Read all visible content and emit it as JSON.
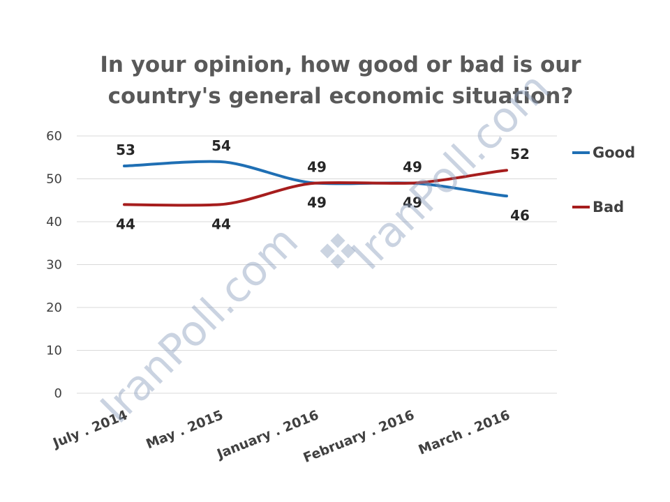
{
  "chart_data": {
    "type": "line",
    "title": "In your opinion, how good or bad is our country's general economic situation?",
    "title_lines": [
      "In your opinion, how good or bad is our",
      "country's general economic situation?"
    ],
    "categories": [
      "July . 2014",
      "May . 2015",
      "January . 2016",
      "February . 2016",
      "March . 2016"
    ],
    "series": [
      {
        "name": "Good",
        "values": [
          53,
          54,
          49,
          49,
          46
        ],
        "color": "#1f6fb4"
      },
      {
        "name": "Bad",
        "values": [
          44,
          44,
          49,
          49,
          52
        ],
        "color": "#a61d1d"
      }
    ],
    "ylim": [
      0,
      60
    ],
    "yticks": [
      0,
      10,
      20,
      30,
      40,
      50,
      60
    ],
    "grid": true,
    "legend": "right",
    "line_style": "smooth"
  },
  "watermark": {
    "text": "IranPoll.com",
    "icon": "iranpoll-logo-icon"
  }
}
